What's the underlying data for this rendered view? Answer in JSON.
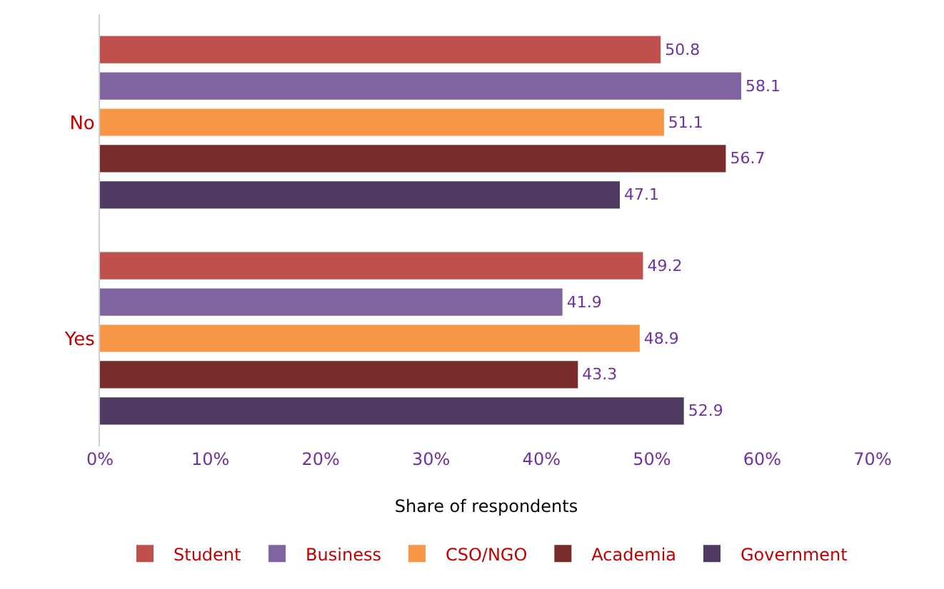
{
  "chart_data": {
    "type": "bar",
    "orientation": "horizontal",
    "categories": [
      "No",
      "Yes"
    ],
    "series": [
      {
        "name": "Student",
        "color": "#c0504d",
        "values": [
          50.8,
          49.2
        ]
      },
      {
        "name": "Business",
        "color": "#8064a2",
        "values": [
          58.1,
          41.9
        ]
      },
      {
        "name": "CSO/NGO",
        "color": "#f79646",
        "values": [
          51.1,
          48.9
        ]
      },
      {
        "name": "Academia",
        "color": "#772c2a",
        "values": [
          56.7,
          43.3
        ]
      },
      {
        "name": "Government",
        "color": "#4f3b62",
        "values": [
          47.1,
          52.9
        ]
      }
    ],
    "xlim": [
      0,
      70
    ],
    "xticks": [
      {
        "value": 0,
        "label": "0%"
      },
      {
        "value": 10,
        "label": "10%"
      },
      {
        "value": 20,
        "label": "20%"
      },
      {
        "value": 30,
        "label": "30%"
      },
      {
        "value": 40,
        "label": "40%"
      },
      {
        "value": 50,
        "label": "50%"
      },
      {
        "value": 60,
        "label": "60%"
      },
      {
        "value": 70,
        "label": "70%"
      }
    ],
    "xlabel": "Share of respondents",
    "data_labels": true,
    "grid": false,
    "legend": "bottom"
  }
}
